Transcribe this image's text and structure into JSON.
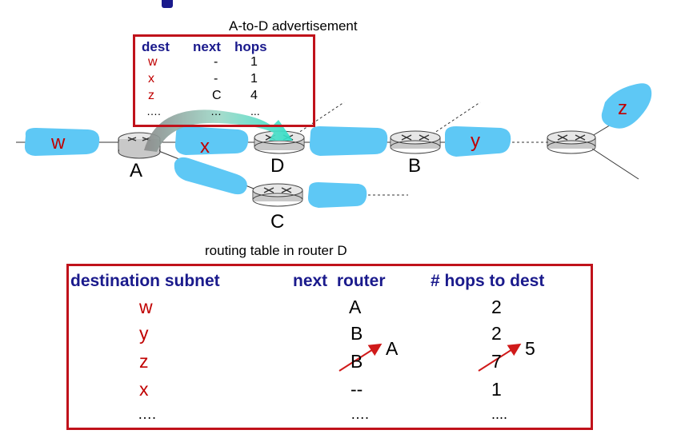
{
  "advertisement": {
    "caption": "A-to-D advertisement",
    "headers": {
      "dest": "dest",
      "next": "next",
      "hops": "hops"
    },
    "rows": [
      {
        "dest": "w",
        "next": "-",
        "hops": "1"
      },
      {
        "dest": "x",
        "next": "-",
        "hops": "1"
      },
      {
        "dest": "z",
        "next": "C",
        "hops": "4"
      },
      {
        "dest": "….",
        "next": "…",
        "hops": "..."
      }
    ]
  },
  "network": {
    "subnets": {
      "w": "w",
      "x": "x",
      "y": "y",
      "z": "z"
    },
    "routers": {
      "A": "A",
      "B": "B",
      "C": "C",
      "D": "D"
    }
  },
  "routing_table": {
    "caption": "routing table in router D",
    "headers": {
      "dest": "destination subnet",
      "next": "next  router",
      "hops": "# hops to dest"
    },
    "rows": [
      {
        "dest": "w",
        "next": "A",
        "hops": "2"
      },
      {
        "dest": "y",
        "next": "B",
        "hops": "2"
      },
      {
        "dest": "z",
        "next": "B",
        "hops": "7",
        "new_next": "A",
        "new_hops": "5"
      },
      {
        "dest": "x",
        "next": "--",
        "hops": "1"
      },
      {
        "dest": "….",
        "next": "….",
        "hops": "...."
      }
    ]
  },
  "colors": {
    "subnet": "#5ec8f5",
    "box_border": "#c0121b",
    "header_blue": "#1a1a8c",
    "label_red": "#c00000",
    "update_arrow": "#d01a1a"
  }
}
